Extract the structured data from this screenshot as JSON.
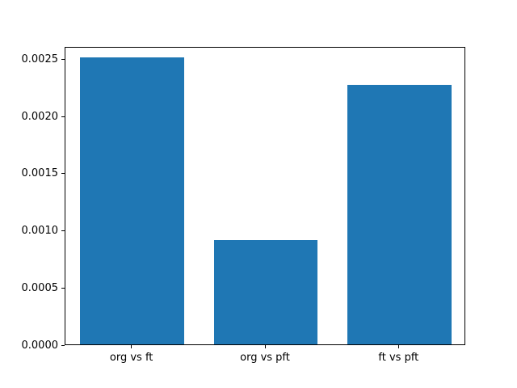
{
  "chart_data": {
    "type": "bar",
    "categories": [
      "org vs ft",
      "org vs pft",
      "ft vs pft"
    ],
    "values": [
      0.00251,
      0.00091,
      0.00227
    ],
    "title": "",
    "xlabel": "",
    "ylabel": "",
    "ylim": [
      0,
      0.00261
    ],
    "yticks": [
      0.0,
      0.0005,
      0.001,
      0.0015,
      0.002,
      0.0025
    ],
    "ytick_labels": [
      "0.0000",
      "0.0005",
      "0.0010",
      "0.0015",
      "0.0020",
      "0.0025"
    ],
    "bar_color": "#1f77b4",
    "grid": false,
    "legend": null
  }
}
